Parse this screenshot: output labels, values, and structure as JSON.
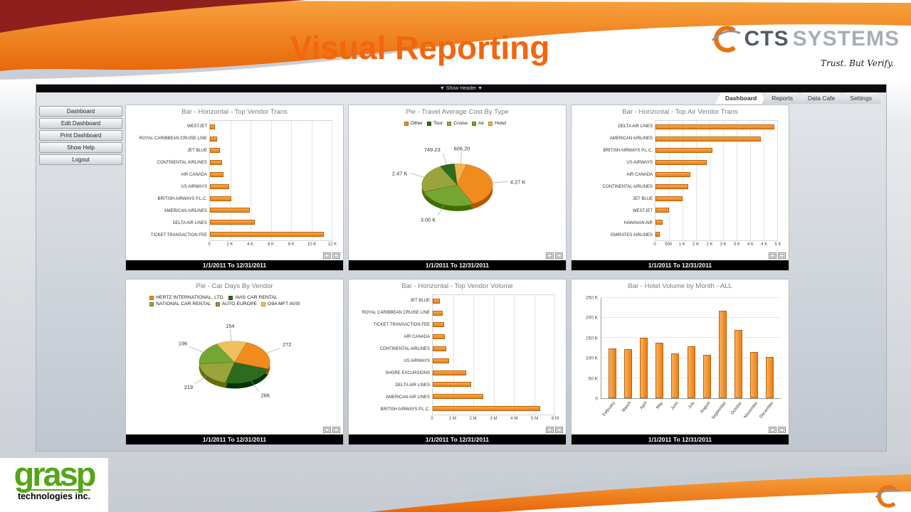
{
  "slide": {
    "title": "Visual Reporting"
  },
  "brand": {
    "logo_primary": "CTS",
    "logo_secondary": "SYSTEMS",
    "tagline": "Trust. But Verify.",
    "grasp_name": "grasp",
    "grasp_sub": "technologies inc."
  },
  "colors": {
    "accent_orange": "#ee7d11",
    "title_orange": "#f2660d",
    "grasp_green": "#55a516",
    "pie_dark_green": "#2e6b1e",
    "pie_green": "#74a632",
    "pie_olive": "#9aa43c",
    "pie_light_orange": "#f5b04c"
  },
  "app": {
    "header_toggle": "▼ Show Header ▼",
    "tabs": [
      "Dashboard",
      "Reports",
      "Data Cafe",
      "Settings"
    ],
    "sidebar": [
      "Dashboard",
      "Edit Dashboard",
      "Print Dashboard",
      "Show Help",
      "Logout"
    ],
    "date_range": "1/1/2011 To 12/31/2011"
  },
  "chart_data": [
    {
      "type": "bar-h",
      "title": "Bar - Horizontal - Top Vendor Trans",
      "categories": [
        "WESTJET",
        "ROYAL CARIBBEAN CRUISE LINE",
        "JET BLUE",
        "CONTINENTAL AIRLINES",
        "AIR CANADA",
        "US AIRWAYS",
        "BRITISH AIRWAYS P.L.C.",
        "AMERICAN AIRLINES",
        "DELTA AIR LINES",
        "TICKET TRANSACTION FEE"
      ],
      "values": [
        500,
        700,
        1000,
        1200,
        1300,
        1900,
        2100,
        3900,
        4400,
        11200
      ],
      "xticks": [
        "0",
        "2 K",
        "4 K",
        "6 K",
        "8 K",
        "10 K",
        "12 K"
      ],
      "xmax": 12000,
      "bar_color": "#ee7d11",
      "footer": "1/1/2011 To 12/31/2011"
    },
    {
      "type": "pie",
      "title": "Pie - Travel Average Cost By Type",
      "legend": [
        {
          "label": "Other",
          "color": "#f08c1e"
        },
        {
          "label": "Tour",
          "color": "#2e6b1e"
        },
        {
          "label": "Cruise",
          "color": "#9aa43c"
        },
        {
          "label": "Air",
          "color": "#74a632"
        },
        {
          "label": "Hotel",
          "color": "#f5b04c"
        }
      ],
      "slices": [
        {
          "name": "Other",
          "value": 4270,
          "display": "4.27 K",
          "color": "#f08c1e"
        },
        {
          "name": "Air",
          "value": 3000,
          "display": "3.00 K",
          "color": "#74a632"
        },
        {
          "name": "Cruise",
          "value": 2470,
          "display": "2.47 K",
          "color": "#9aa43c"
        },
        {
          "name": "Tour",
          "value": 749.23,
          "display": "749.23",
          "color": "#2e6b1e"
        },
        {
          "name": "Hotel",
          "value": 606.2,
          "display": "606.20",
          "color": "#f5b04c"
        }
      ],
      "start_deg": 15,
      "footer": "1/1/2011 To 12/31/2011"
    },
    {
      "type": "bar-h",
      "title": "Bar - Horizontal - Top Air Vendor Trans",
      "categories": [
        "DELTA AIR LINES",
        "AMERICAN AIRLINES",
        "BRITISH AIRWAYS P.L.C.",
        "US AIRWAYS",
        "AIR CANADA",
        "CONTINENTAL AIRLINES",
        "JET BLUE",
        "WESTJET",
        "HAWAIIAN AIR",
        "EMIRATES AIRLINES"
      ],
      "values": [
        4400,
        3900,
        2100,
        1900,
        1300,
        1200,
        1000,
        500,
        260,
        160
      ],
      "xticks": [
        "0",
        "500",
        "1 K",
        "2 K",
        "2 K",
        "3 K",
        "3 K",
        "4 K",
        "4 K",
        "5 K"
      ],
      "xmax": 4500,
      "bar_color": "#ee7d11",
      "footer": "1/1/2011 To 12/31/2011"
    },
    {
      "type": "pie",
      "title": "Pie - Car Days By Vendor",
      "legend": [
        {
          "label": "HERTZ INTERNATIONAL, LTD.",
          "color": "#f08c1e"
        },
        {
          "label": "AVIS CAR RENTAL",
          "color": "#2e6b1e"
        },
        {
          "label": "NATIONAL CAR RENTAL",
          "color": "#9aa43c"
        },
        {
          "label": "AUTO EUROPE",
          "color": "#74a632"
        },
        {
          "label": "O9A MFT AVIS",
          "color": "#f0c060"
        }
      ],
      "legend_align": "left",
      "slices": [
        {
          "name": "HERTZ INTERNATIONAL, LTD.",
          "value": 272,
          "display": "272",
          "color": "#f08c1e"
        },
        {
          "name": "AVIS CAR RENTAL",
          "value": 266,
          "display": "266",
          "color": "#2e6b1e"
        },
        {
          "name": "NATIONAL CAR RENTAL",
          "value": 219,
          "display": "219",
          "color": "#9aa43c"
        },
        {
          "name": "AUTO EUROPE",
          "value": 196,
          "display": "196",
          "color": "#74a632"
        },
        {
          "name": "O9A MFT AVIS",
          "value": 154,
          "display": "154",
          "color": "#f0c060"
        }
      ],
      "start_deg": 20,
      "footer": "1/1/2011 To 12/31/2011"
    },
    {
      "type": "bar-h",
      "title": "Bar - Horizontal - Top Vendor Volume",
      "categories": [
        "JET BLUE",
        "ROYAL CARIBBEAN CRUISE LINE",
        "TICKET TRANSACTION FEE",
        "AIR CANADA",
        "CONTINENTAL AIRLINES",
        "US AIRWAYS",
        "SHORE EXCURSIONS",
        "DELTA AIR LINES",
        "AMERICAN AIR LINES",
        "BRITISH AIRWAYS P.L.C."
      ],
      "values": [
        350000,
        500000,
        550000,
        600000,
        650000,
        800000,
        1650000,
        1900000,
        2500000,
        5300000
      ],
      "xticks": [
        "0",
        "1 M",
        "2 M",
        "3 M",
        "4 M",
        "5 M",
        "6 M"
      ],
      "xmax": 6000000,
      "bar_color": "#ee7d11",
      "footer": "1/1/2011 To 12/31/2011"
    },
    {
      "type": "bar-v",
      "title": "Bar - Hotel Volume by Month - ALL",
      "categories": [
        "February",
        "March",
        "April",
        "May",
        "June",
        "July",
        "August",
        "September",
        "October",
        "November",
        "December"
      ],
      "values": [
        125000,
        122000,
        150000,
        138000,
        112000,
        130000,
        108000,
        218000,
        170000,
        115000,
        102000
      ],
      "yticks": [
        "0",
        "50 K",
        "100 K",
        "150 K",
        "200 K",
        "250 K"
      ],
      "ymax": 250000,
      "bar_color": "#ee7d11",
      "footer": "1/1/2011 To 12/31/2011"
    }
  ]
}
